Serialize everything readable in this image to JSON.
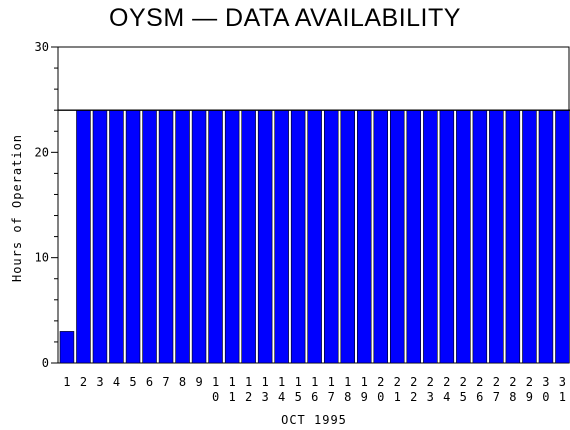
{
  "chart_data": {
    "type": "bar",
    "title": "OYSM — DATA AVAILABILITY",
    "xlabel": "OCT 1995",
    "ylabel": "Hours of Operation",
    "ylim": [
      0,
      30
    ],
    "yticks": [
      0,
      10,
      20,
      30
    ],
    "reference_line": 24,
    "grid": false,
    "bar_color": "#0000ff",
    "categories": [
      "1",
      "2",
      "3",
      "4",
      "5",
      "6",
      "7",
      "8",
      "9",
      "10",
      "11",
      "12",
      "13",
      "14",
      "15",
      "16",
      "17",
      "18",
      "19",
      "20",
      "21",
      "22",
      "23",
      "24",
      "25",
      "26",
      "27",
      "28",
      "29",
      "30",
      "31"
    ],
    "values": [
      3,
      24,
      24,
      24,
      24,
      24,
      24,
      24,
      24,
      24,
      24,
      24,
      24,
      24,
      24,
      24,
      24,
      24,
      24,
      24,
      24,
      24,
      24,
      24,
      24,
      24,
      24,
      24,
      24,
      24,
      24
    ]
  }
}
